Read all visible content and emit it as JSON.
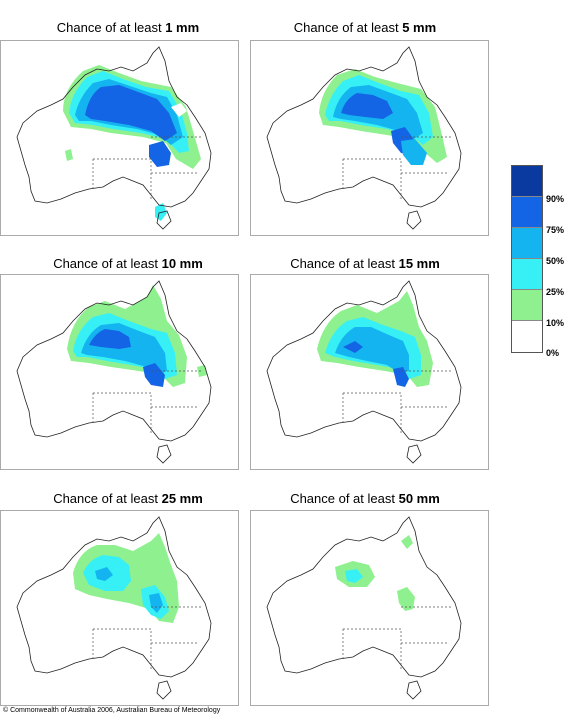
{
  "title_prefix": "Chance of at least",
  "panels": [
    {
      "amount": "1 mm"
    },
    {
      "amount": "5 mm"
    },
    {
      "amount": "10 mm"
    },
    {
      "amount": "15 mm"
    },
    {
      "amount": "25 mm"
    },
    {
      "amount": "50 mm"
    }
  ],
  "legend": {
    "labels": [
      "90%",
      "75%",
      "50%",
      "25%",
      "10%",
      "0%"
    ],
    "colors": [
      "#0a3aa0",
      "#1464e6",
      "#14b4f0",
      "#37f0f5",
      "#8ef08e",
      "#ffffff"
    ]
  },
  "copyright": "© Commonwealth of Australia 2006, Australian Bureau of Meteorology"
}
